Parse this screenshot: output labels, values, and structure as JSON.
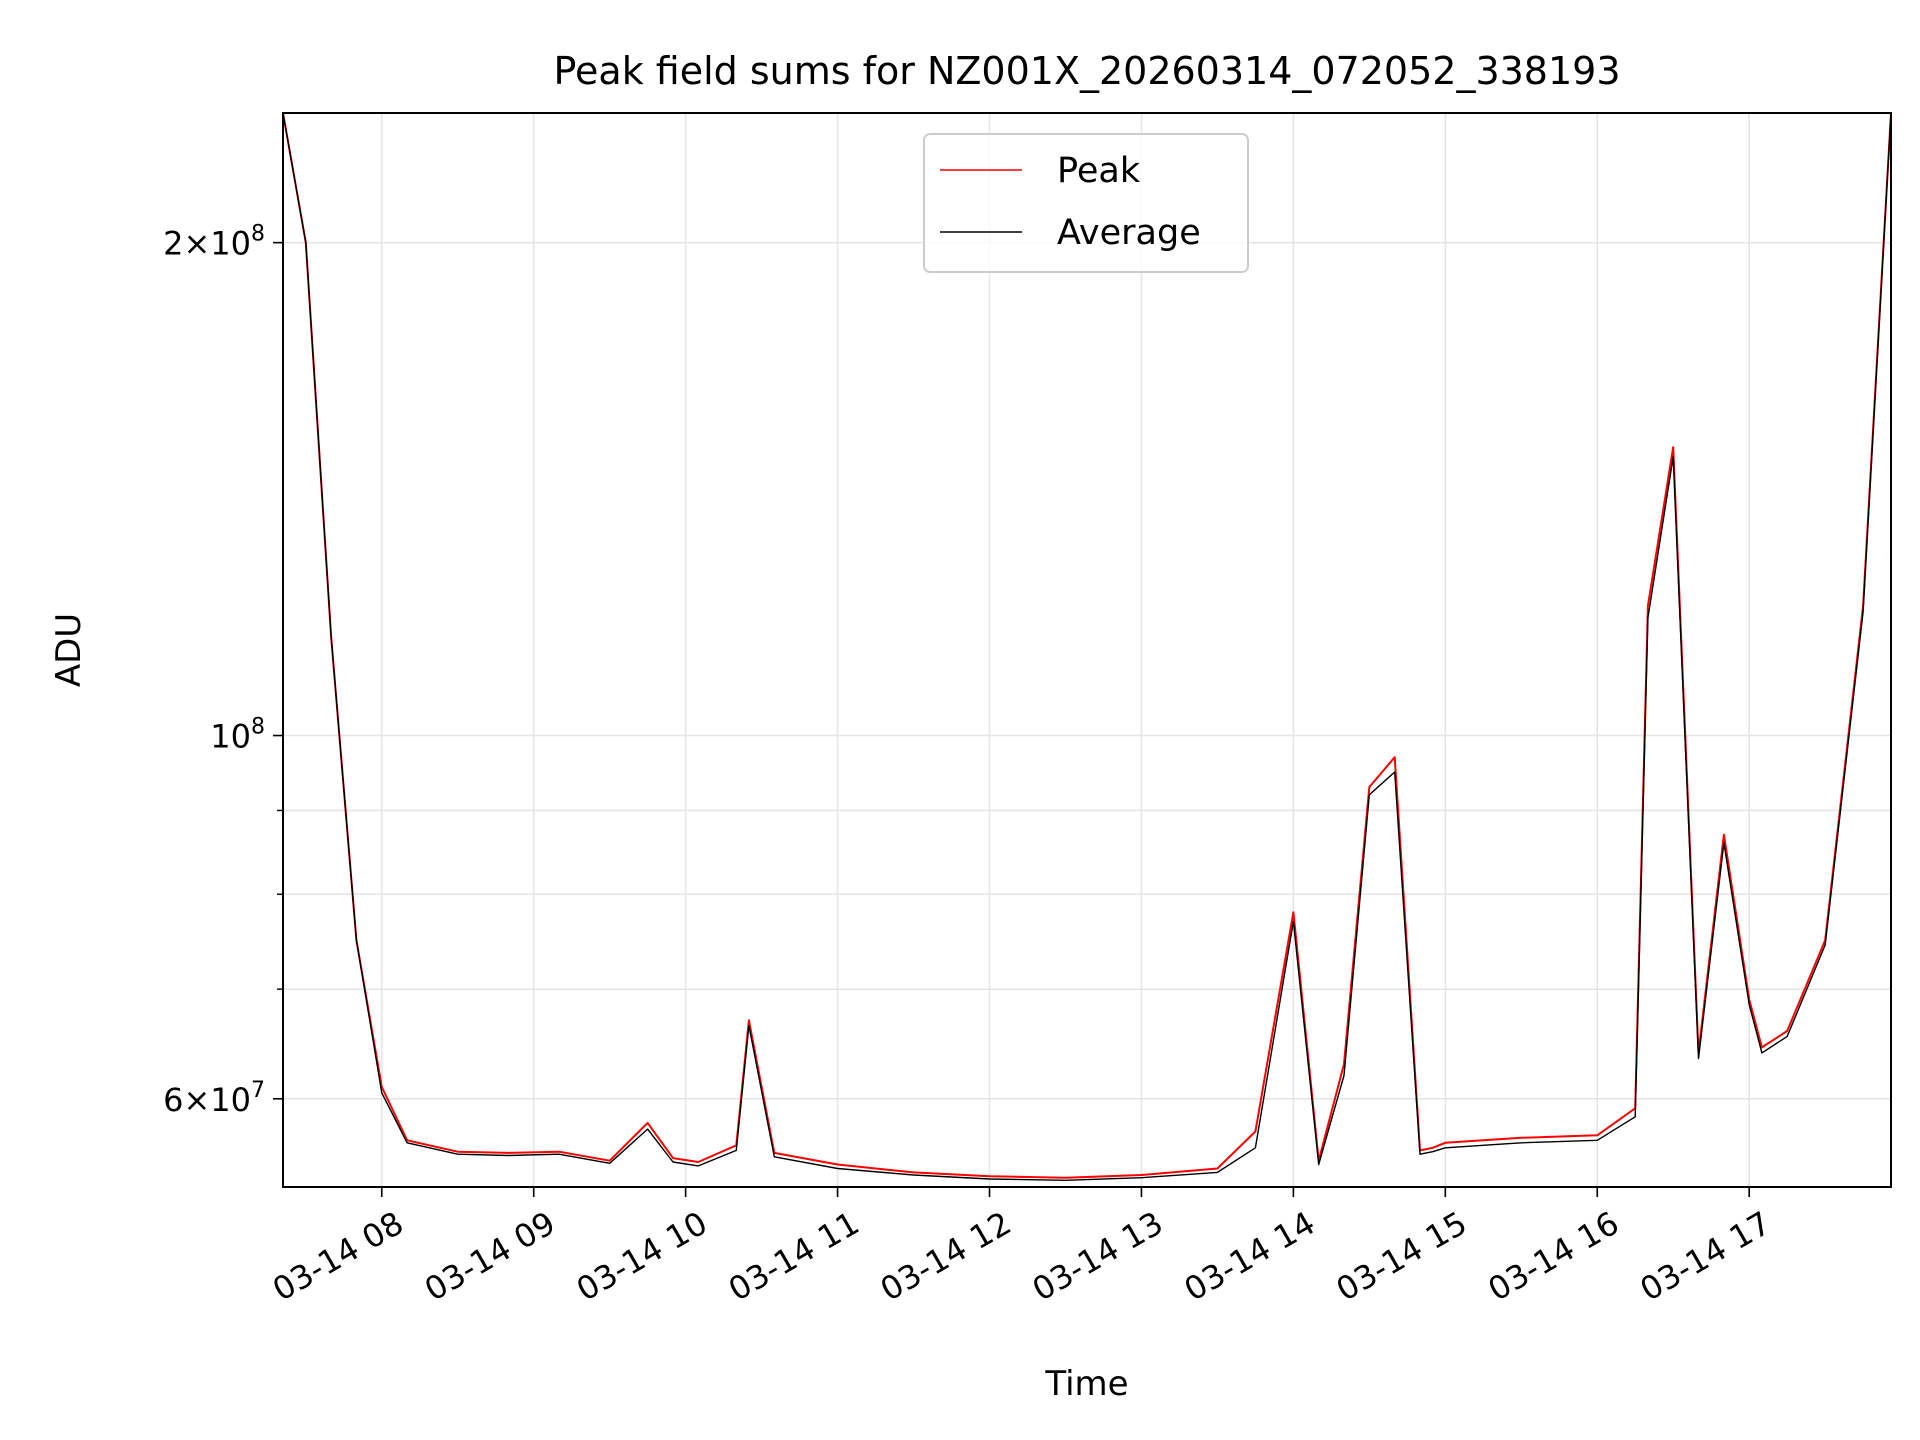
{
  "chart_data": {
    "type": "line",
    "title": "Peak field sums for NZ001X_20260314_072052_338193",
    "xlabel": "Time",
    "ylabel": "ADU",
    "yscale": "log",
    "ylim": [
      53000000,
      240000000
    ],
    "xlim": [
      "2026-03-14T07:21:00",
      "2026-03-14T17:56:00"
    ],
    "grid": true,
    "legend_position": "upper center",
    "x_ticks": [
      "03-14 08",
      "03-14 09",
      "03-14 10",
      "03-14 11",
      "03-14 12",
      "03-14 13",
      "03-14 14",
      "03-14 15",
      "03-14 16",
      "03-14 17"
    ],
    "y_ticks": [
      {
        "value": 200000000,
        "base": "2×10",
        "exp": "8"
      },
      {
        "value": 100000000,
        "base": "10",
        "exp": "8"
      },
      {
        "value": 60000000,
        "base": "6×10",
        "exp": "7"
      }
    ],
    "series": [
      {
        "name": "Peak",
        "color": "#ff0000",
        "x": [
          "07:21",
          "07:30",
          "07:40",
          "07:50",
          "08:00",
          "08:10",
          "08:30",
          "08:50",
          "09:10",
          "09:30",
          "09:45",
          "09:55",
          "10:05",
          "10:20",
          "10:25",
          "10:35",
          "11:00",
          "11:30",
          "12:00",
          "12:30",
          "13:00",
          "13:30",
          "13:45",
          "14:00",
          "14:10",
          "14:20",
          "14:30",
          "14:40",
          "14:50",
          "14:55",
          "15:00",
          "15:30",
          "16:00",
          "16:15",
          "16:20",
          "16:30",
          "16:40",
          "16:50",
          "17:00",
          "17:05",
          "17:15",
          "17:30",
          "17:45",
          "17:56"
        ],
        "y": [
          240000000,
          200000000,
          115000000,
          75000000,
          61000000,
          56600000,
          55700000,
          55600000,
          55700000,
          55000000,
          58000000,
          55200000,
          54900000,
          56200000,
          67000000,
          55600000,
          54700000,
          54100000,
          53800000,
          53700000,
          53900000,
          54400000,
          57300000,
          78000000,
          55000000,
          63000000,
          93000000,
          97000000,
          55800000,
          56000000,
          56400000,
          56800000,
          57000000,
          59200000,
          120000000,
          150000000,
          64000000,
          87000000,
          69000000,
          64500000,
          66000000,
          75000000,
          120000000,
          240000000
        ]
      },
      {
        "name": "Average",
        "color": "#000000",
        "x": [
          "07:21",
          "07:30",
          "07:40",
          "07:50",
          "08:00",
          "08:10",
          "08:30",
          "08:50",
          "09:10",
          "09:30",
          "09:45",
          "09:55",
          "10:05",
          "10:20",
          "10:25",
          "10:35",
          "11:00",
          "11:30",
          "12:00",
          "12:30",
          "13:00",
          "13:30",
          "13:45",
          "14:00",
          "14:10",
          "14:20",
          "14:30",
          "14:40",
          "14:50",
          "14:55",
          "15:00",
          "15:30",
          "16:00",
          "16:15",
          "16:20",
          "16:30",
          "16:40",
          "16:50",
          "17:00",
          "17:05",
          "17:15",
          "17:30",
          "17:45",
          "17:56"
        ],
        "y": [
          240000000,
          200000000,
          115000000,
          75000000,
          60500000,
          56400000,
          55500000,
          55400000,
          55500000,
          54800000,
          57500000,
          54900000,
          54600000,
          55800000,
          66500000,
          55300000,
          54400000,
          53900000,
          53600000,
          53500000,
          53700000,
          54100000,
          56000000,
          77000000,
          54700000,
          62000000,
          92000000,
          95000000,
          55500000,
          55700000,
          56000000,
          56400000,
          56600000,
          58500000,
          118000000,
          148000000,
          63500000,
          86000000,
          68500000,
          64000000,
          65500000,
          74500000,
          119000000,
          240000000
        ]
      }
    ]
  }
}
